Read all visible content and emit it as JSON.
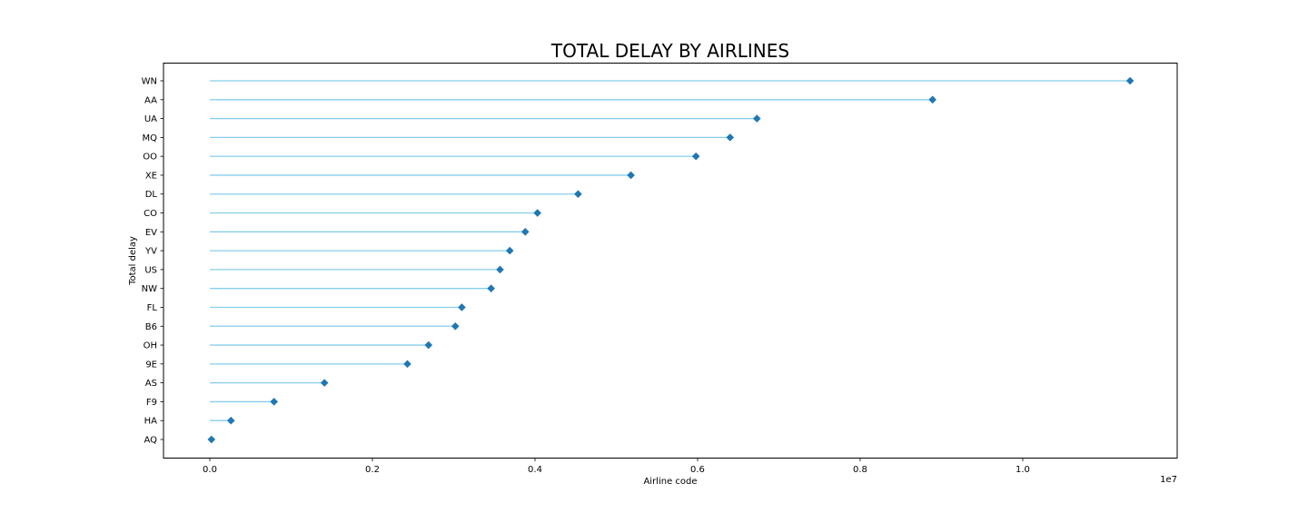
{
  "chart_data": {
    "type": "lollipop",
    "title": "TOTAL DELAY BY AIRLINES",
    "xlabel": "Airline code",
    "ylabel": "Total delay",
    "x_offset_text": "1e7",
    "xlim": [
      -0.057,
      1.19
    ],
    "x_ticks": [
      0.0,
      0.2,
      0.4,
      0.6,
      0.8,
      1.0
    ],
    "x_tick_labels": [
      "0.0",
      "0.2",
      "0.4",
      "0.6",
      "0.8",
      "1.0"
    ],
    "categories": [
      "WN",
      "AA",
      "UA",
      "MQ",
      "OO",
      "XE",
      "DL",
      "CO",
      "EV",
      "YV",
      "US",
      "NW",
      "FL",
      "B6",
      "OH",
      "9E",
      "AS",
      "F9",
      "HA",
      "AQ"
    ],
    "values": [
      11.32,
      8.89,
      6.73,
      6.4,
      5.98,
      5.18,
      4.53,
      4.03,
      3.88,
      3.69,
      3.57,
      3.46,
      3.1,
      3.02,
      2.69,
      2.43,
      1.41,
      0.79,
      0.26,
      0.02
    ],
    "value_unit_note": "",
    "stem_color": "#87ceeb",
    "marker_color": "#1f77b4",
    "grid": false
  }
}
